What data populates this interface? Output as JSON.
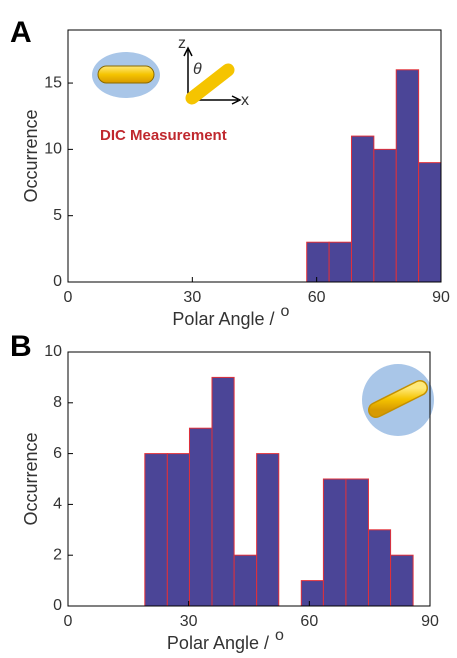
{
  "chart_data": [
    {
      "type": "histogram",
      "panel": "A",
      "bins": [
        57.6,
        63.0,
        68.4,
        73.8,
        79.2,
        84.6,
        90.0
      ],
      "values": [
        3,
        3,
        11,
        10,
        16,
        9
      ],
      "color": "#4b4597",
      "edge_color": "#e0303a",
      "xlim": [
        0,
        90
      ],
      "xticks": [
        0,
        30,
        60,
        90
      ],
      "ylim": [
        0,
        19
      ],
      "yticks": [
        0,
        5,
        10,
        15
      ],
      "x_label": "Polar Angle /",
      "x_label_unit": "o",
      "y_label": "Occurrence",
      "annotations": [
        "DIC Measurement",
        "z",
        "x",
        "θ"
      ]
    },
    {
      "type": "histogram",
      "panel": "B",
      "bins": [
        19.1,
        24.7,
        30.2,
        35.8,
        41.3,
        46.9,
        52.4,
        58.0,
        63.5,
        69.1,
        74.7,
        80.2,
        85.8
      ],
      "values": [
        6,
        6,
        7,
        9,
        2,
        6,
        0,
        1,
        5,
        5,
        3,
        2
      ],
      "color": "#4b4597",
      "edge_color": "#e0303a",
      "xlim": [
        0,
        90
      ],
      "xticks": [
        0,
        30,
        60,
        90
      ],
      "ylim": [
        0,
        10
      ],
      "yticks": [
        0,
        2,
        4,
        6,
        8,
        10
      ],
      "x_label": "Polar Angle /",
      "x_label_unit": "o",
      "y_label": "Occurrence"
    }
  ]
}
